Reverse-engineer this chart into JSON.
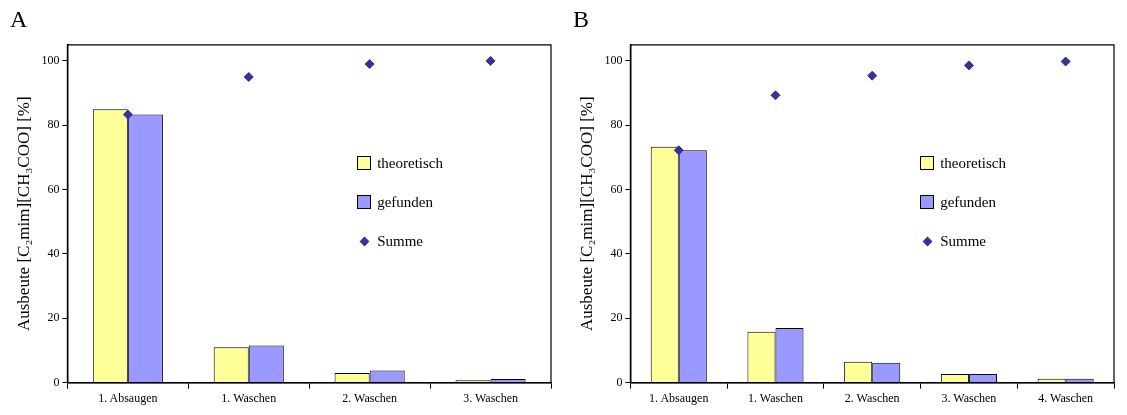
{
  "chart_data": [
    {
      "type": "bar",
      "title": "A",
      "ylabel": "Ausbeute [C₂mim][CH₃COO] [%]",
      "categories": [
        "1. Absaugen",
        "1. Waschen",
        "2. Waschen",
        "3. Waschen"
      ],
      "ylim": [
        0,
        105
      ],
      "yticks": [
        0,
        20,
        40,
        60,
        80,
        100
      ],
      "legend": "right",
      "marker": "diamond",
      "series": [
        {
          "name": "theoretisch",
          "color": "#ffff99",
          "values": [
            85,
            11,
            3,
            0.7
          ]
        },
        {
          "name": "gefunden",
          "color": "#9999ff",
          "values": [
            83.3,
            11.5,
            3.8,
            1.1
          ]
        },
        {
          "name": "Summe",
          "type": "scatter",
          "color": "#333399",
          "x": [
            "1. Absaugen",
            "1. Waschen",
            "2. Waschen",
            "3. Waschen"
          ],
          "values": [
            83.3,
            95,
            99,
            100
          ]
        }
      ]
    },
    {
      "type": "bar",
      "title": "B",
      "ylabel": "Ausbeute [C₂mim][CH₃COO] [%]",
      "categories": [
        "1. Absaugen",
        "1. Waschen",
        "2. Waschen",
        "3. Waschen",
        "4. Waschen"
      ],
      "ylim": [
        0,
        105
      ],
      "yticks": [
        0,
        20,
        40,
        60,
        80,
        100
      ],
      "legend": "right",
      "marker": "diamond",
      "series": [
        {
          "name": "theoretisch",
          "color": "#ffff99",
          "values": [
            73.3,
            15.8,
            6.5,
            2.7,
            1.2
          ]
        },
        {
          "name": "gefunden",
          "color": "#9999ff",
          "values": [
            72.2,
            17,
            6.2,
            2.7,
            1.2
          ]
        },
        {
          "name": "Summe",
          "type": "scatter",
          "color": "#333399",
          "x": [
            "1. Absaugen",
            "1. Waschen",
            "2. Waschen",
            "3. Waschen",
            "4. Waschen"
          ],
          "values": [
            72.2,
            89.3,
            95.4,
            98.6,
            99.8
          ]
        }
      ]
    }
  ]
}
